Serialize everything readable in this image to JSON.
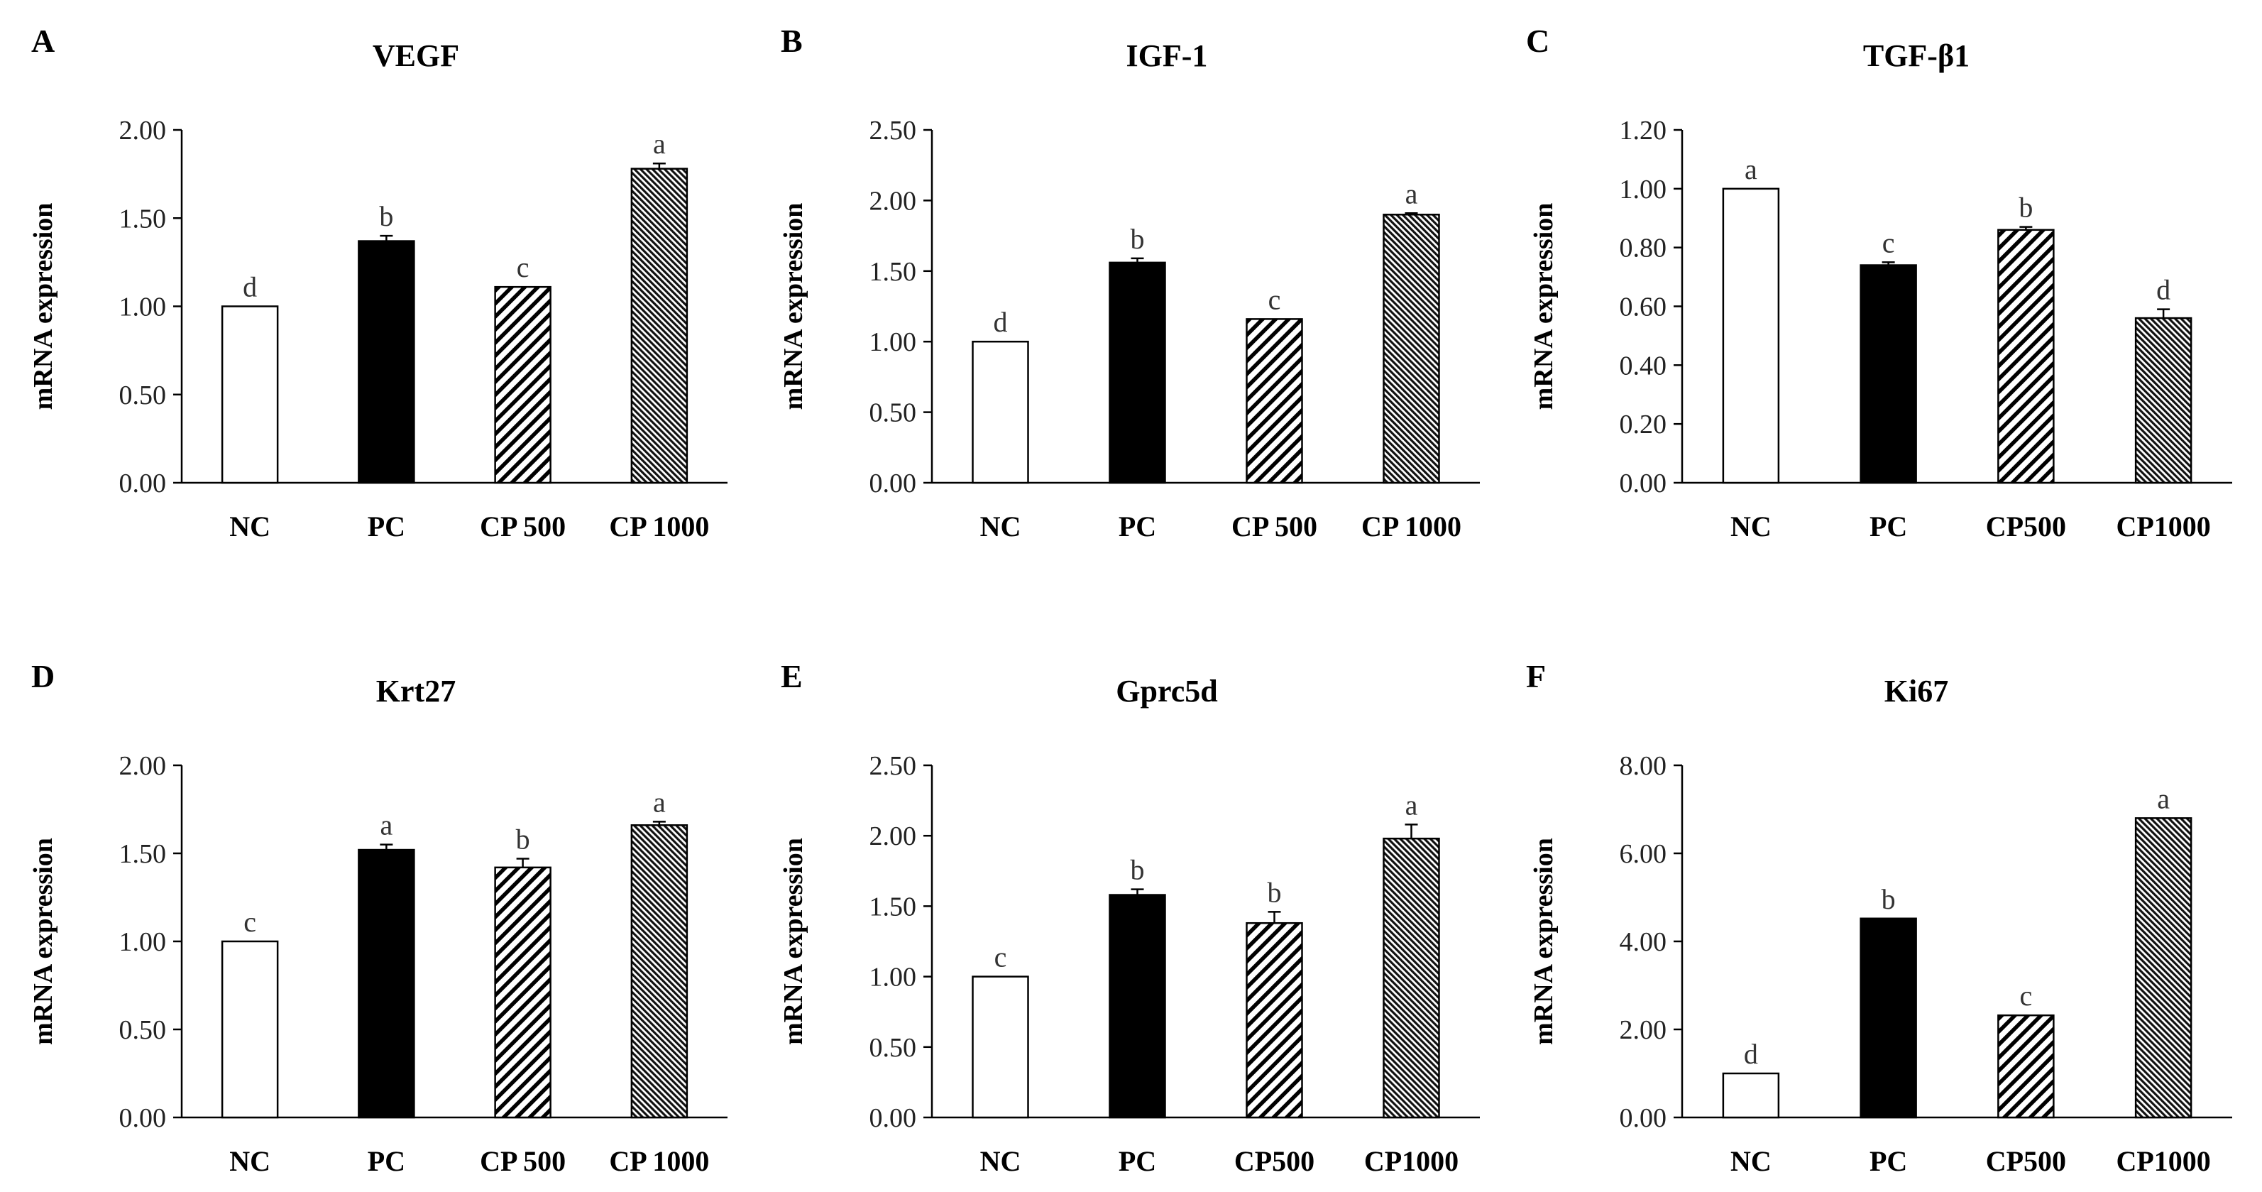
{
  "figure": {
    "axis_label_y": "mRNA expression"
  },
  "chart_data": [
    {
      "type": "bar",
      "panel": "A",
      "title": "VEGF",
      "ylabel": "mRNA expression",
      "xlabel": "",
      "ylim": [
        0,
        2.0
      ],
      "yticks": [
        "0.00",
        "0.50",
        "1.00",
        "1.50",
        "2.00"
      ],
      "categories": [
        "NC",
        "PC",
        "CP 500",
        "CP 1000"
      ],
      "values": [
        1.0,
        1.37,
        1.11,
        1.78
      ],
      "errors": [
        0.0,
        0.03,
        0.0,
        0.03
      ],
      "letters": [
        "d",
        "b",
        "c",
        "a"
      ],
      "fills": [
        "white",
        "black",
        "diag-wide",
        "diag-dense"
      ]
    },
    {
      "type": "bar",
      "panel": "B",
      "title": "IGF-1",
      "ylabel": "mRNA expression",
      "xlabel": "",
      "ylim": [
        0,
        2.5
      ],
      "yticks": [
        "0.00",
        "0.50",
        "1.00",
        "1.50",
        "2.00",
        "2.50"
      ],
      "categories": [
        "NC",
        "PC",
        "CP 500",
        "CP 1000"
      ],
      "values": [
        1.0,
        1.56,
        1.16,
        1.9
      ],
      "errors": [
        0.0,
        0.03,
        0.0,
        0.01
      ],
      "letters": [
        "d",
        "b",
        "c",
        "a"
      ],
      "fills": [
        "white",
        "black",
        "diag-wide",
        "diag-dense"
      ]
    },
    {
      "type": "bar",
      "panel": "C",
      "title": "TGF-β1",
      "ylabel": "mRNA expression",
      "xlabel": "",
      "ylim": [
        0,
        1.2
      ],
      "yticks": [
        "0.00",
        "0.20",
        "0.40",
        "0.60",
        "0.80",
        "1.00",
        "1.20"
      ],
      "categories": [
        "NC",
        "PC",
        "CP500",
        "CP1000"
      ],
      "values": [
        1.0,
        0.74,
        0.86,
        0.56
      ],
      "errors": [
        0.0,
        0.01,
        0.01,
        0.03
      ],
      "letters": [
        "a",
        "c",
        "b",
        "d"
      ],
      "fills": [
        "white",
        "black",
        "diag-wide",
        "diag-dense"
      ]
    },
    {
      "type": "bar",
      "panel": "D",
      "title": "Krt27",
      "ylabel": "mRNA expression",
      "xlabel": "",
      "ylim": [
        0,
        2.0
      ],
      "yticks": [
        "0.00",
        "0.50",
        "1.00",
        "1.50",
        "2.00"
      ],
      "categories": [
        "NC",
        "PC",
        "CP 500",
        "CP 1000"
      ],
      "values": [
        1.0,
        1.52,
        1.42,
        1.66
      ],
      "errors": [
        0.0,
        0.03,
        0.05,
        0.02
      ],
      "letters": [
        "c",
        "a",
        "b",
        "a"
      ],
      "fills": [
        "white",
        "black",
        "diag-wide",
        "diag-dense"
      ]
    },
    {
      "type": "bar",
      "panel": "E",
      "title": "Gprc5d",
      "ylabel": "mRNA expression",
      "xlabel": "",
      "ylim": [
        0,
        2.5
      ],
      "yticks": [
        "0.00",
        "0.50",
        "1.00",
        "1.50",
        "2.00",
        "2.50"
      ],
      "categories": [
        "NC",
        "PC",
        "CP500",
        "CP1000"
      ],
      "values": [
        1.0,
        1.58,
        1.38,
        1.98
      ],
      "errors": [
        0.0,
        0.04,
        0.08,
        0.1
      ],
      "letters": [
        "c",
        "b",
        "b",
        "a"
      ],
      "fills": [
        "white",
        "black",
        "diag-wide",
        "diag-dense"
      ]
    },
    {
      "type": "bar",
      "panel": "F",
      "title": "Ki67",
      "ylabel": "mRNA expression",
      "xlabel": "",
      "ylim": [
        0,
        8.0
      ],
      "yticks": [
        "0.00",
        "2.00",
        "4.00",
        "6.00",
        "8.00"
      ],
      "categories": [
        "NC",
        "PC",
        "CP500",
        "CP1000"
      ],
      "values": [
        1.0,
        4.52,
        2.32,
        6.8
      ],
      "errors": [
        0.0,
        0.0,
        0.0,
        0.0
      ],
      "letters": [
        "d",
        "b",
        "c",
        "a"
      ],
      "fills": [
        "white",
        "black",
        "diag-wide",
        "diag-dense"
      ]
    }
  ]
}
